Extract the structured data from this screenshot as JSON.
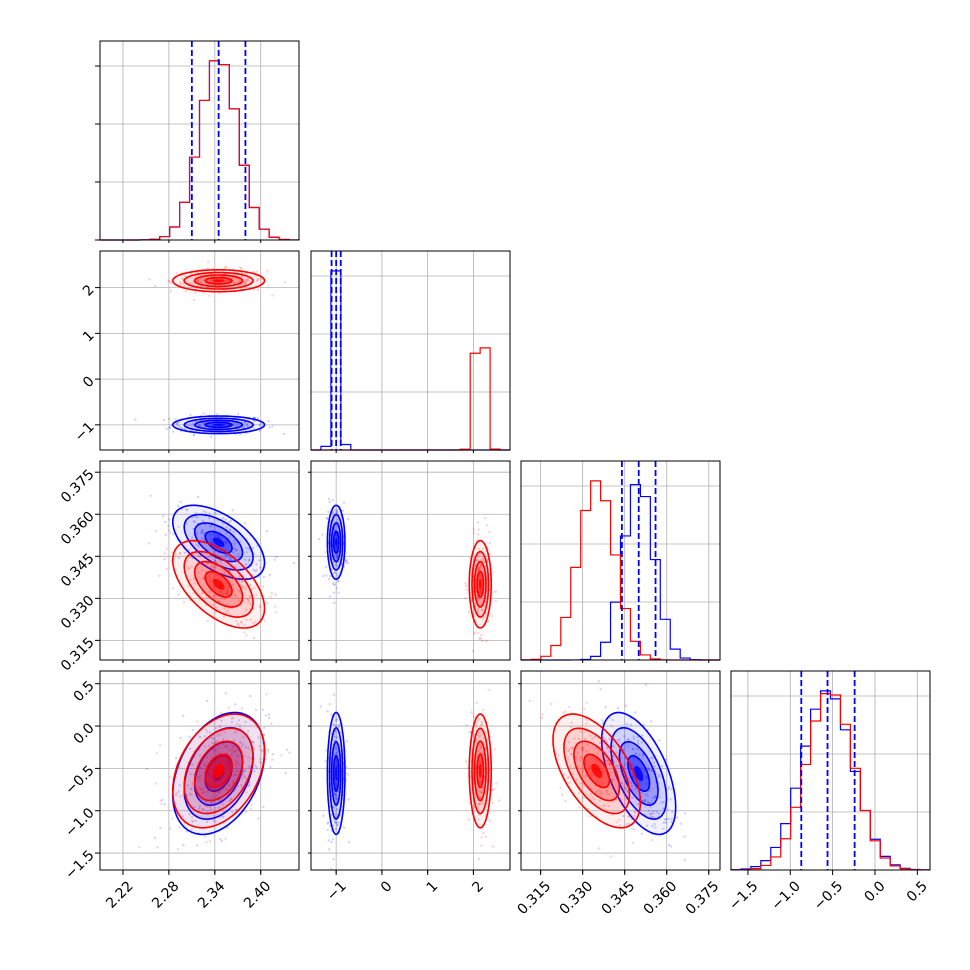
{
  "chart_data": {
    "type": "corner",
    "grid": true,
    "colors": {
      "blue": "#0000ff",
      "red": "#ff0000"
    },
    "parameters": [
      {
        "ticks": [
          "2.22",
          "2.28",
          "2.34",
          "2.40"
        ],
        "range": [
          2.19,
          2.45
        ]
      },
      {
        "ticks": [
          "−1",
          "0",
          "1",
          "2"
        ],
        "range": [
          -1.55,
          2.8
        ]
      },
      {
        "ticks": [
          "0.315",
          "0.330",
          "0.345",
          "0.360",
          "0.375"
        ],
        "range": [
          0.308,
          0.379
        ]
      },
      {
        "ticks": [
          "0.5",
          "0.0",
          "−0.5",
          "−1.0",
          "−1.5"
        ],
        "range": [
          -1.7,
          0.65
        ]
      }
    ],
    "series": [
      {
        "color": "blue",
        "means": [
          2.345,
          -1.0,
          0.35,
          -0.56
        ],
        "sds": [
          0.025,
          0.08,
          0.0055,
          0.3
        ],
        "quantiles": [
          [
            2.31,
            2.345,
            2.38
          ],
          [
            -1.1,
            -1.0,
            -0.9
          ],
          [
            0.344,
            0.35,
            0.356
          ],
          [
            -0.87,
            -0.56,
            -0.24
          ]
        ]
      },
      {
        "color": "red",
        "means": [
          2.345,
          2.15,
          0.335,
          -0.53
        ],
        "sds": [
          0.025,
          0.1,
          0.0065,
          0.28
        ]
      }
    ]
  }
}
